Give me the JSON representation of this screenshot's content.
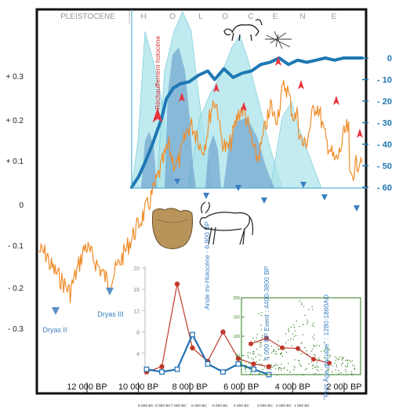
{
  "chart_data": [
    {
      "type": "line",
      "name": "climate-curve",
      "periods": [
        "PLEISTOCENE",
        "H",
        "O",
        "L",
        "O",
        "C",
        "E",
        "N",
        "E"
      ],
      "y_ticks": [
        "+ 0.3",
        "+ 0.2",
        "+ 0.1",
        "0",
        "- 0.1",
        "- 0.2",
        "- 0.3"
      ],
      "x_ticks": [
        "12 000 BP",
        "10 000 BP",
        "8 000 BP",
        "6 000 BP",
        "4 000 BP",
        "2 000 BP"
      ],
      "bc_ticks": [
        "9 000 BC",
        "8 000 BC",
        "7 000 BC",
        "6 000 BC",
        "5 000 BC",
        "4 000 BC",
        "3 000 BC",
        "2 000 BC",
        "1 000 BC"
      ],
      "annotations": [
        "Dryas II",
        "Dryas III",
        "Réchauffement holocène",
        "Aride mi-Holocène - 6 900 BP",
        "4 000 BP Event : 4400-3800 BP",
        "\"Petit Âge glaciaire\" : 1280-1860AD"
      ],
      "series": [
        {
          "color": "#f08c28"
        }
      ]
    },
    {
      "type": "line",
      "name": "blue-index",
      "y_ticks": [
        "0",
        "- 10",
        "- 20",
        "- 30",
        "- 40",
        "- 50",
        "- 60"
      ],
      "series": [
        {
          "color": "#1f78b4",
          "x_bp": [
            10000,
            9700,
            9400,
            9100,
            8900,
            8700,
            8500,
            8200,
            7900,
            7500,
            7100,
            6700,
            6400,
            6000,
            5600,
            5200,
            4800,
            4400,
            4000,
            3600,
            3200,
            2800,
            2400,
            2000,
            1600,
            1200,
            800,
            400,
            0
          ],
          "values": [
            -60,
            -55,
            -48,
            -40,
            -34,
            -28,
            -19,
            -14,
            -12,
            -11,
            -8,
            -6,
            -10,
            -5,
            -9,
            -7,
            -6,
            -3,
            -2,
            0,
            -3,
            -1,
            -2,
            -1,
            0,
            -1,
            0,
            0,
            0
          ]
        }
      ]
    },
    {
      "type": "line",
      "name": "inset-counts",
      "y_ticks": [
        "20",
        "16",
        "12",
        "8",
        "4"
      ],
      "ylim": [
        0,
        20
      ],
      "series": [
        {
          "color": "#c0392b",
          "marker": "circle",
          "values": [
            0.5,
            1.5,
            17,
            5,
            2.5,
            8,
            3,
            2,
            1.5
          ]
        },
        {
          "color": "#2171b5",
          "marker": "square",
          "values": [
            1,
            0.5,
            1,
            7.5,
            2,
            0.5,
            2,
            1,
            0
          ]
        }
      ]
    },
    {
      "type": "scatter",
      "name": "inset-dates",
      "y_ticks": [
        "200",
        "150",
        "100",
        "50"
      ],
      "ylim": [
        0,
        200
      ],
      "series": [
        {
          "color": "#2e7d1e"
        },
        {
          "color": "#c0392b",
          "marker": "circle",
          "values": [
            80,
            95,
            70,
            68,
            40,
            30
          ]
        }
      ]
    }
  ]
}
